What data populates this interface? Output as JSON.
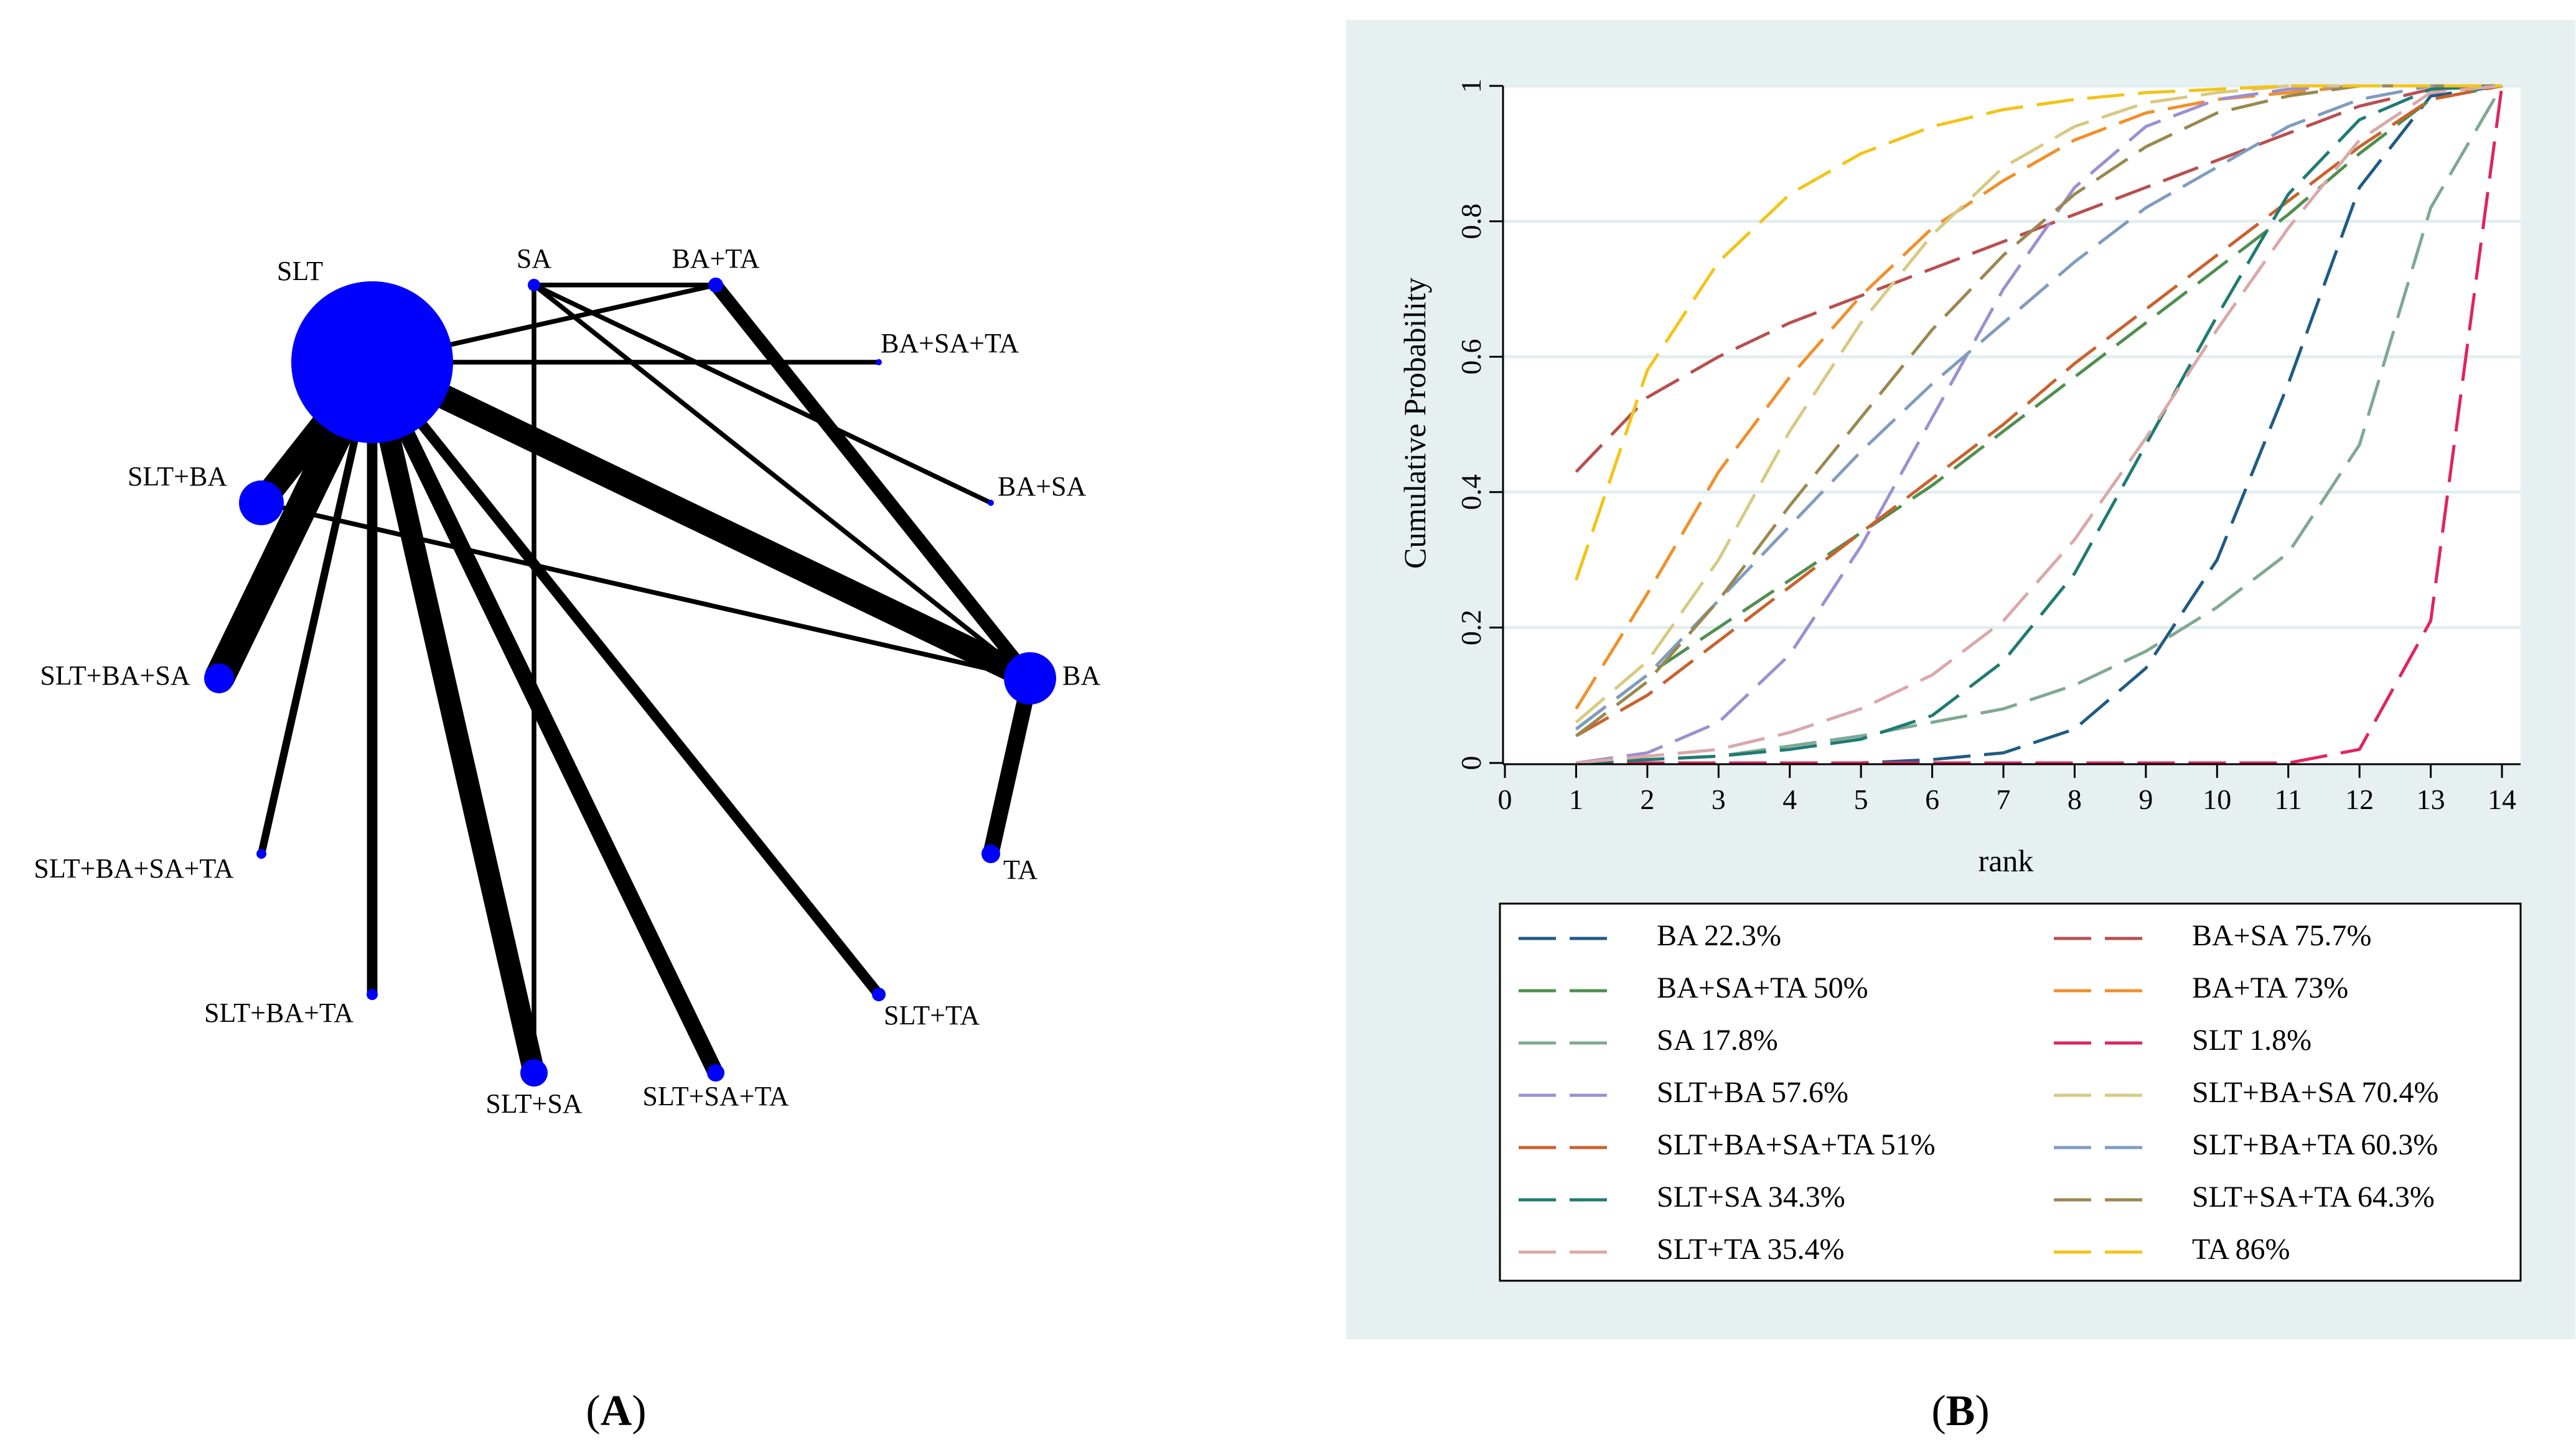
{
  "panel_a": {
    "label_open": "(",
    "label_letter": "A",
    "label_close": ")"
  },
  "panel_b": {
    "label_open": "(",
    "label_letter": "B",
    "label_close": ")"
  },
  "chart_data": [
    {
      "type": "network",
      "node_color": "#0000ff",
      "edge_color": "#000000",
      "nodes": [
        {
          "id": "SLT",
          "label": "SLT",
          "size": 130
        },
        {
          "id": "SA",
          "label": "SA",
          "size": 10
        },
        {
          "id": "BA+TA",
          "label": "BA+TA",
          "size": 12
        },
        {
          "id": "BA+SA+TA",
          "label": "BA+SA+TA",
          "size": 5
        },
        {
          "id": "BA+SA",
          "label": "BA+SA",
          "size": 5
        },
        {
          "id": "BA",
          "label": "BA",
          "size": 42
        },
        {
          "id": "TA",
          "label": "TA",
          "size": 15
        },
        {
          "id": "SLT+TA",
          "label": "SLT+TA",
          "size": 11
        },
        {
          "id": "SLT+SA+TA",
          "label": "SLT+SA+TA",
          "size": 14
        },
        {
          "id": "SLT+SA",
          "label": "SLT+SA",
          "size": 22
        },
        {
          "id": "SLT+BA+TA",
          "label": "SLT+BA+TA",
          "size": 9
        },
        {
          "id": "SLT+BA+SA+TA",
          "label": "SLT+BA+SA+TA",
          "size": 8
        },
        {
          "id": "SLT+BA+SA",
          "label": "SLT+BA+SA",
          "size": 24
        },
        {
          "id": "SLT+BA",
          "label": "SLT+BA",
          "size": 36
        }
      ],
      "edges": [
        {
          "source": "SLT",
          "target": "SLT+BA",
          "weight": 8
        },
        {
          "source": "SLT",
          "target": "SLT+BA+SA",
          "weight": 10
        },
        {
          "source": "SLT",
          "target": "SLT+BA+SA+TA",
          "weight": 2
        },
        {
          "source": "SLT",
          "target": "SLT+BA+TA",
          "weight": 3
        },
        {
          "source": "SLT",
          "target": "SLT+SA",
          "weight": 7
        },
        {
          "source": "SLT",
          "target": "SLT+SA+TA",
          "weight": 5
        },
        {
          "source": "SLT",
          "target": "SLT+TA",
          "weight": 3
        },
        {
          "source": "SLT",
          "target": "BA",
          "weight": 8
        },
        {
          "source": "SLT",
          "target": "BA+TA",
          "weight": 1
        },
        {
          "source": "SLT",
          "target": "BA+SA+TA",
          "weight": 1
        },
        {
          "source": "SA",
          "target": "BA+TA",
          "weight": 1
        },
        {
          "source": "SA",
          "target": "BA+SA",
          "weight": 1
        },
        {
          "source": "SA",
          "target": "BA",
          "weight": 1
        },
        {
          "source": "SA",
          "target": "SLT+SA",
          "weight": 1
        },
        {
          "source": "BA+TA",
          "target": "BA",
          "weight": 4
        },
        {
          "source": "SLT+BA",
          "target": "BA",
          "weight": 1
        },
        {
          "source": "BA",
          "target": "TA",
          "weight": 5
        }
      ]
    },
    {
      "type": "line",
      "xlabel": "rank",
      "ylabel": "Cumulative Probability",
      "xlim": [
        0,
        14
      ],
      "ylim": [
        0,
        1
      ],
      "x_ticks": [
        "0",
        "1",
        "2",
        "3",
        "4",
        "5",
        "6",
        "7",
        "8",
        "9",
        "10",
        "11",
        "12",
        "13",
        "14"
      ],
      "y_ticks": [
        "0",
        "0.2",
        "0.4",
        "0.6",
        "0.8",
        "1"
      ],
      "grid": true,
      "background": "#e6f0f1",
      "legend_placement": "bottom",
      "x": [
        1,
        2,
        3,
        4,
        5,
        6,
        7,
        8,
        9,
        10,
        11,
        12,
        13,
        14
      ],
      "series": [
        {
          "name": "BA 22.3%",
          "color": "#1f5b84",
          "values": [
            0,
            0,
            0,
            0,
            0,
            0.005,
            0.015,
            0.05,
            0.14,
            0.3,
            0.56,
            0.85,
            0.985,
            1
          ]
        },
        {
          "name": "BA+SA 75.7%",
          "color": "#b84f4f",
          "values": [
            0.43,
            0.54,
            0.6,
            0.65,
            0.69,
            0.73,
            0.77,
            0.81,
            0.85,
            0.89,
            0.93,
            0.97,
            0.995,
            1
          ]
        },
        {
          "name": "BA+SA+TA 50%",
          "color": "#4f8f4f",
          "values": [
            0.05,
            0.13,
            0.2,
            0.27,
            0.34,
            0.41,
            0.49,
            0.57,
            0.65,
            0.73,
            0.81,
            0.9,
            0.98,
            1
          ]
        },
        {
          "name": "BA+TA 73%",
          "color": "#f0902a",
          "values": [
            0.08,
            0.25,
            0.43,
            0.57,
            0.69,
            0.79,
            0.86,
            0.92,
            0.96,
            0.98,
            0.99,
            1,
            1,
            1
          ]
        },
        {
          "name": "SA 17.8%",
          "color": "#7fa892",
          "values": [
            0,
            0.005,
            0.01,
            0.025,
            0.04,
            0.06,
            0.08,
            0.115,
            0.165,
            0.23,
            0.31,
            0.47,
            0.82,
            1
          ]
        },
        {
          "name": "SLT 1.8%",
          "color": "#e0245e",
          "values": [
            0,
            0,
            0,
            0,
            0,
            0,
            0,
            0,
            0,
            0,
            0,
            0.02,
            0.21,
            1
          ]
        },
        {
          "name": "SLT+BA 57.6%",
          "color": "#9c8fd2",
          "values": [
            0,
            0.015,
            0.06,
            0.16,
            0.32,
            0.51,
            0.7,
            0.85,
            0.94,
            0.98,
            0.995,
            1,
            1,
            1
          ]
        },
        {
          "name": "SLT+BA+SA 70.4%",
          "color": "#d8c982",
          "values": [
            0.06,
            0.15,
            0.3,
            0.49,
            0.65,
            0.78,
            0.88,
            0.94,
            0.975,
            0.99,
            1,
            1,
            1,
            1
          ]
        },
        {
          "name": "SLT+BA+SA+TA 51%",
          "color": "#c9622e",
          "values": [
            0.04,
            0.1,
            0.18,
            0.26,
            0.34,
            0.42,
            0.5,
            0.59,
            0.67,
            0.75,
            0.83,
            0.91,
            0.98,
            1
          ]
        },
        {
          "name": "SLT+BA+TA 60.3%",
          "color": "#7f9cbf",
          "values": [
            0.05,
            0.13,
            0.24,
            0.35,
            0.46,
            0.56,
            0.65,
            0.74,
            0.82,
            0.88,
            0.94,
            0.98,
            1,
            1
          ]
        },
        {
          "name": "SLT+SA 34.3%",
          "color": "#1e7b72",
          "values": [
            0,
            0.005,
            0.01,
            0.02,
            0.035,
            0.07,
            0.15,
            0.28,
            0.47,
            0.66,
            0.84,
            0.95,
            0.995,
            1
          ]
        },
        {
          "name": "SLT+SA+TA 64.3%",
          "color": "#9a8850",
          "values": [
            0.04,
            0.12,
            0.24,
            0.38,
            0.51,
            0.64,
            0.75,
            0.84,
            0.91,
            0.96,
            0.985,
            1,
            1,
            1
          ]
        },
        {
          "name": "SLT+TA 35.4%",
          "color": "#d9a8a8",
          "values": [
            0,
            0.01,
            0.02,
            0.045,
            0.08,
            0.13,
            0.21,
            0.33,
            0.48,
            0.64,
            0.79,
            0.92,
            0.99,
            1
          ]
        },
        {
          "name": "TA 86%",
          "color": "#f2c418",
          "values": [
            0.27,
            0.58,
            0.74,
            0.84,
            0.9,
            0.94,
            0.965,
            0.98,
            0.99,
            0.995,
            1,
            1,
            1,
            1
          ]
        }
      ]
    }
  ]
}
